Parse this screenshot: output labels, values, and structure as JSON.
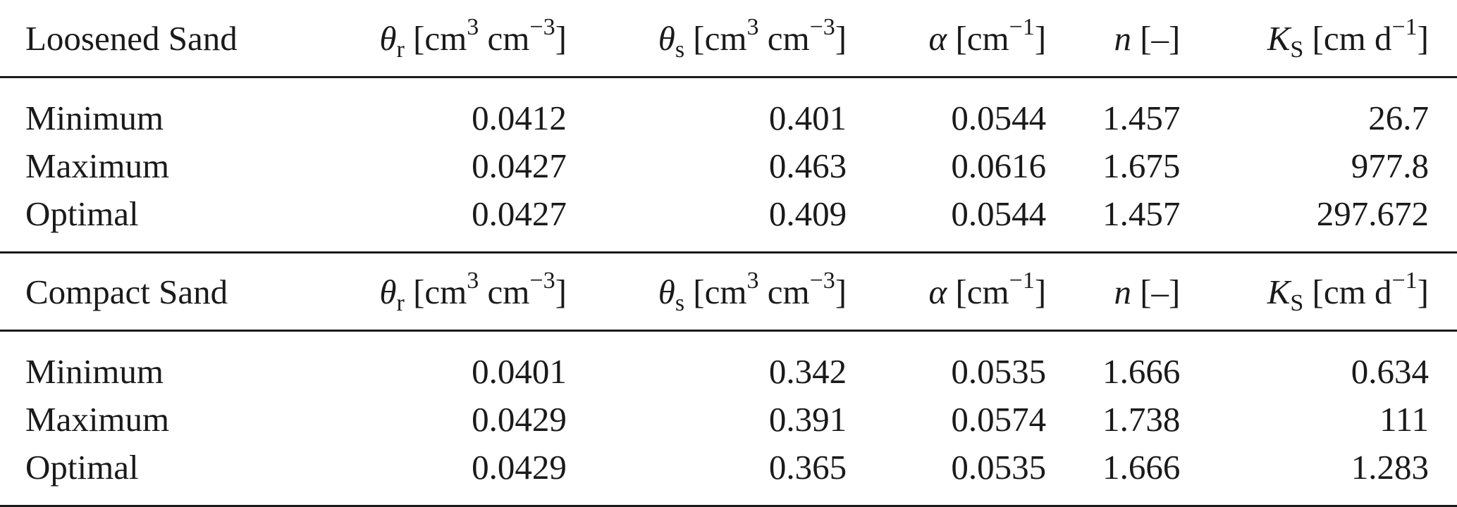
{
  "columns": [
    {
      "symbol": "θ",
      "sub": "r",
      "unit_pre": " [cm",
      "unit_sup1": "3",
      "unit_mid": " cm",
      "unit_sup2": "−3",
      "unit_post": "]"
    },
    {
      "symbol": "θ",
      "sub": "s",
      "unit_pre": " [cm",
      "unit_sup1": "3",
      "unit_mid": " cm",
      "unit_sup2": "−3",
      "unit_post": "]"
    },
    {
      "symbol": "α",
      "sub": "",
      "unit_pre": " [cm",
      "unit_sup1": "−1",
      "unit_mid": "",
      "unit_sup2": "",
      "unit_post": "]"
    },
    {
      "symbol": "n",
      "sub": "",
      "unit_pre": " [–]",
      "unit_sup1": "",
      "unit_mid": "",
      "unit_sup2": "",
      "unit_post": ""
    },
    {
      "symbol": "K",
      "sub": "S",
      "unit_pre": " [cm d",
      "unit_sup1": "−1",
      "unit_mid": "",
      "unit_sup2": "",
      "unit_post": "]"
    }
  ],
  "sections": [
    {
      "title": "Loosened Sand",
      "rows": [
        {
          "label": "Minimum",
          "values": [
            "0.0412",
            "0.401",
            "0.0544",
            "1.457",
            "26.7"
          ]
        },
        {
          "label": "Maximum",
          "values": [
            "0.0427",
            "0.463",
            "0.0616",
            "1.675",
            "977.8"
          ]
        },
        {
          "label": "Optimal",
          "values": [
            "0.0427",
            "0.409",
            "0.0544",
            "1.457",
            "297.672"
          ]
        }
      ]
    },
    {
      "title": "Compact Sand",
      "rows": [
        {
          "label": "Minimum",
          "values": [
            "0.0401",
            "0.342",
            "0.0535",
            "1.666",
            "0.634"
          ]
        },
        {
          "label": "Maximum",
          "values": [
            "0.0429",
            "0.391",
            "0.0574",
            "1.738",
            "111"
          ]
        },
        {
          "label": "Optimal",
          "values": [
            "0.0429",
            "0.365",
            "0.0535",
            "1.666",
            "1.283"
          ]
        }
      ]
    }
  ]
}
